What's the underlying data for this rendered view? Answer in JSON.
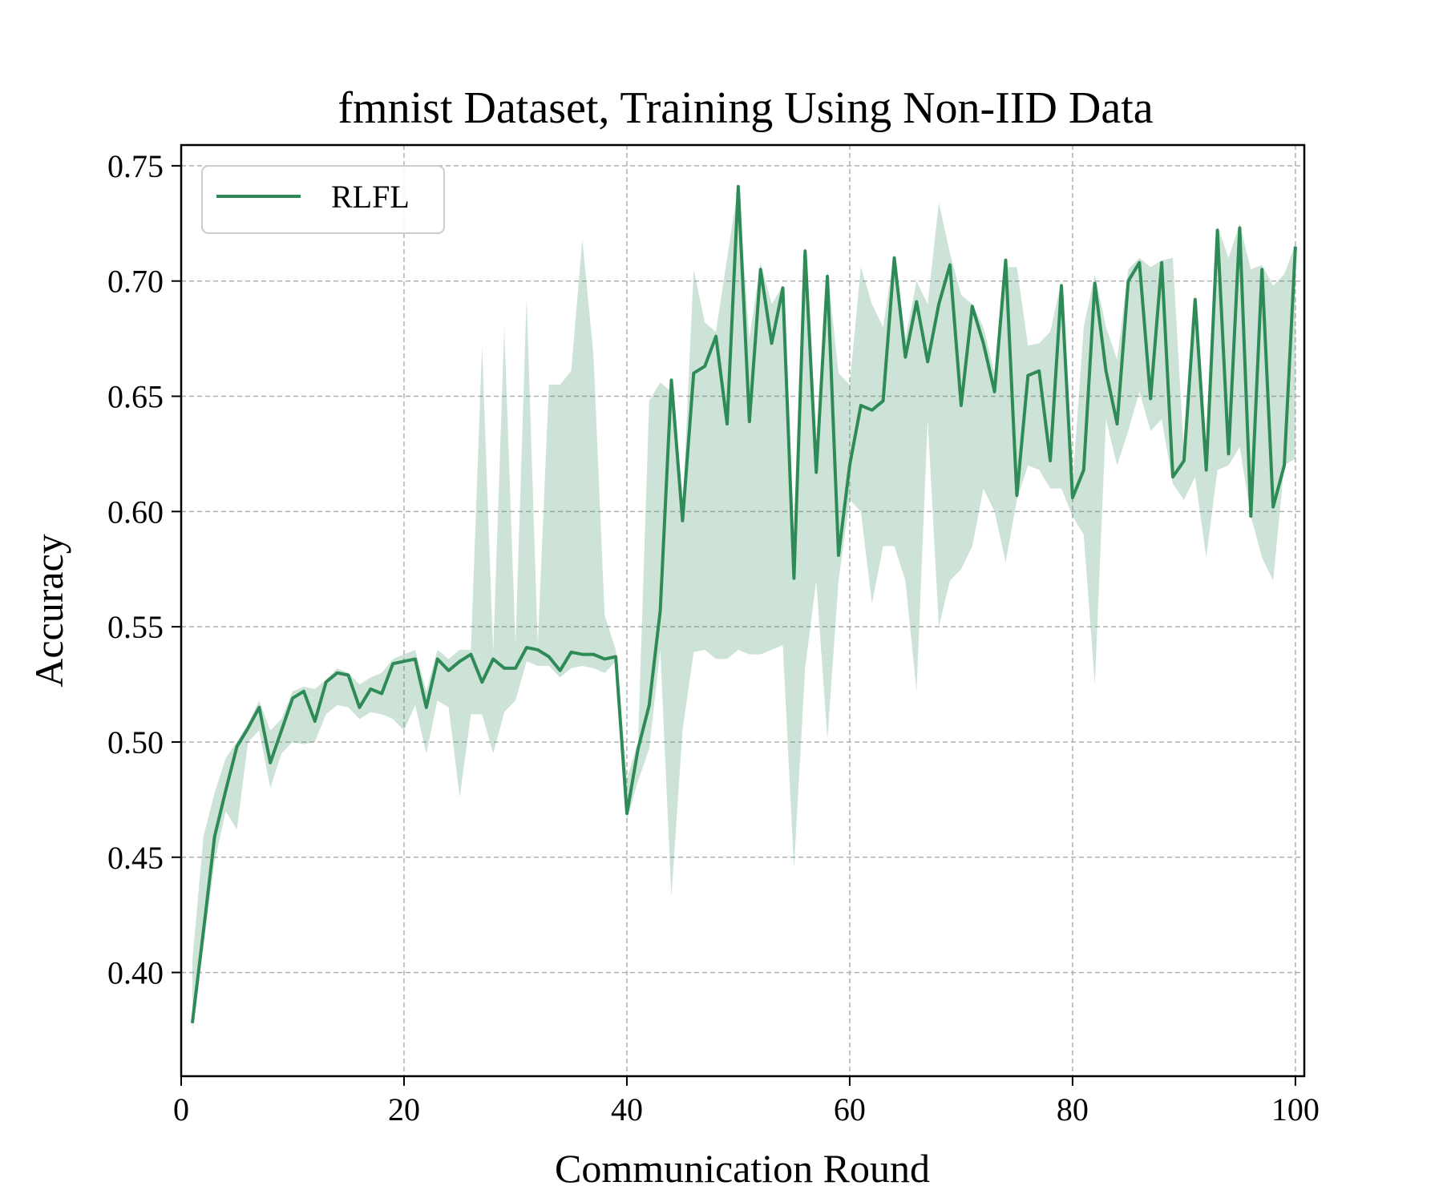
{
  "chart_data": {
    "type": "line",
    "title": "fmnist Dataset, Training Using Non-IID Data",
    "xlabel": "Communication Round",
    "ylabel": "Accuracy",
    "xlim": [
      0,
      100.8
    ],
    "ylim": [
      0.355,
      0.759
    ],
    "xticks": [
      "0",
      "20",
      "40",
      "60",
      "80",
      "100"
    ],
    "yticks": [
      "0.40",
      "0.45",
      "0.50",
      "0.55",
      "0.60",
      "0.65",
      "0.70",
      "0.75"
    ],
    "grid": true,
    "legend_position": "top-left",
    "line_color": "#2e8b57",
    "band_color": "#2e8b57",
    "series": [
      {
        "name": "RLFL",
        "x": [
          1,
          2,
          3,
          4,
          5,
          6,
          7,
          8,
          9,
          10,
          11,
          12,
          13,
          14,
          15,
          16,
          17,
          18,
          19,
          20,
          21,
          22,
          23,
          24,
          25,
          26,
          27,
          28,
          29,
          30,
          31,
          32,
          33,
          34,
          35,
          36,
          37,
          38,
          39,
          40,
          41,
          42,
          43,
          44,
          45,
          46,
          47,
          48,
          49,
          50,
          51,
          52,
          53,
          54,
          55,
          56,
          57,
          58,
          59,
          60,
          61,
          62,
          63,
          64,
          65,
          66,
          67,
          68,
          69,
          70,
          71,
          72,
          73,
          74,
          75,
          76,
          77,
          78,
          79,
          80,
          81,
          82,
          83,
          84,
          85,
          86,
          87,
          88,
          89,
          90,
          91,
          92,
          93,
          94,
          95,
          96,
          97,
          98,
          99,
          100
        ],
        "y": [
          0.378,
          0.418,
          0.459,
          0.479,
          0.498,
          0.506,
          0.515,
          0.491,
          0.505,
          0.519,
          0.522,
          0.509,
          0.526,
          0.53,
          0.529,
          0.515,
          0.523,
          0.521,
          0.534,
          0.535,
          0.536,
          0.515,
          0.536,
          0.531,
          0.535,
          0.538,
          0.526,
          0.536,
          0.532,
          0.532,
          0.541,
          0.54,
          0.537,
          0.531,
          0.539,
          0.538,
          0.538,
          0.536,
          0.537,
          0.469,
          0.497,
          0.516,
          0.557,
          0.657,
          0.596,
          0.66,
          0.663,
          0.676,
          0.638,
          0.741,
          0.639,
          0.705,
          0.673,
          0.697,
          0.571,
          0.713,
          0.617,
          0.702,
          0.581,
          0.62,
          0.646,
          0.644,
          0.648,
          0.71,
          0.667,
          0.691,
          0.665,
          0.69,
          0.707,
          0.646,
          0.689,
          0.673,
          0.652,
          0.709,
          0.607,
          0.659,
          0.661,
          0.622,
          0.698,
          0.606,
          0.618,
          0.699,
          0.661,
          0.638,
          0.7,
          0.708,
          0.649,
          0.708,
          0.615,
          0.622,
          0.692,
          0.618,
          0.722,
          0.625,
          0.723,
          0.598,
          0.705,
          0.602,
          0.62,
          0.715
        ],
        "y_lower": [
          0.375,
          0.412,
          0.448,
          0.47,
          0.462,
          0.5,
          0.505,
          0.48,
          0.495,
          0.5,
          0.499,
          0.5,
          0.512,
          0.516,
          0.515,
          0.51,
          0.513,
          0.512,
          0.51,
          0.505,
          0.516,
          0.495,
          0.518,
          0.515,
          0.476,
          0.512,
          0.512,
          0.495,
          0.513,
          0.518,
          0.535,
          0.533,
          0.533,
          0.528,
          0.532,
          0.533,
          0.532,
          0.53,
          0.535,
          0.466,
          0.483,
          0.497,
          0.54,
          0.433,
          0.505,
          0.539,
          0.54,
          0.536,
          0.536,
          0.54,
          0.538,
          0.538,
          0.54,
          0.542,
          0.445,
          0.532,
          0.57,
          0.501,
          0.57,
          0.605,
          0.6,
          0.56,
          0.585,
          0.585,
          0.57,
          0.522,
          0.64,
          0.55,
          0.57,
          0.575,
          0.585,
          0.61,
          0.6,
          0.578,
          0.605,
          0.62,
          0.618,
          0.61,
          0.61,
          0.598,
          0.59,
          0.525,
          0.64,
          0.62,
          0.635,
          0.652,
          0.635,
          0.64,
          0.612,
          0.605,
          0.615,
          0.58,
          0.618,
          0.62,
          0.628,
          0.598,
          0.58,
          0.57,
          0.62,
          0.623
        ],
        "y_upper": [
          0.405,
          0.459,
          0.478,
          0.493,
          0.5,
          0.508,
          0.518,
          0.505,
          0.51,
          0.522,
          0.524,
          0.523,
          0.527,
          0.532,
          0.53,
          0.525,
          0.528,
          0.53,
          0.536,
          0.538,
          0.54,
          0.522,
          0.54,
          0.536,
          0.54,
          0.54,
          0.672,
          0.539,
          0.68,
          0.542,
          0.693,
          0.542,
          0.655,
          0.655,
          0.661,
          0.718,
          0.668,
          0.555,
          0.54,
          0.484,
          0.5,
          0.648,
          0.656,
          0.652,
          0.6,
          0.705,
          0.682,
          0.678,
          0.71,
          0.741,
          0.675,
          0.708,
          0.69,
          0.698,
          0.575,
          0.715,
          0.622,
          0.705,
          0.66,
          0.655,
          0.706,
          0.69,
          0.68,
          0.712,
          0.675,
          0.7,
          0.69,
          0.734,
          0.712,
          0.694,
          0.69,
          0.68,
          0.66,
          0.706,
          0.706,
          0.672,
          0.673,
          0.678,
          0.7,
          0.612,
          0.68,
          0.703,
          0.68,
          0.666,
          0.705,
          0.71,
          0.706,
          0.709,
          0.71,
          0.625,
          0.695,
          0.63,
          0.724,
          0.71,
          0.725,
          0.705,
          0.707,
          0.698,
          0.703,
          0.716
        ]
      }
    ]
  }
}
